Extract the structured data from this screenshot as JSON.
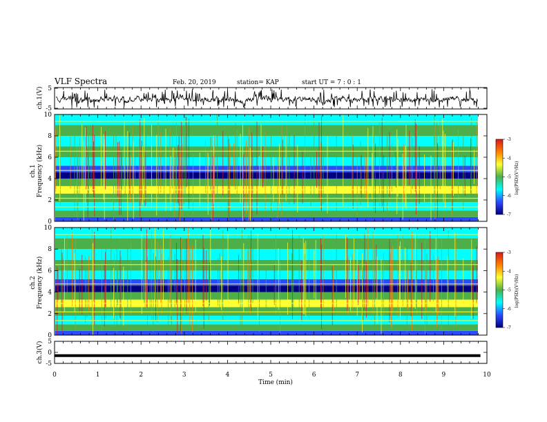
{
  "header": {
    "title": "VLF Spectra",
    "date": "Feb. 20, 2019",
    "station": "station= KAP",
    "start": "start  UT =  7 : 0  : 1"
  },
  "panels": {
    "ch1_trace_label": "ch.1(V)",
    "ch1_spec_label_1": "ch.1",
    "ch1_spec_label_2": "Frequency (kHz)",
    "ch2_spec_label_1": "ch.2",
    "ch2_spec_label_2": "Frequency (kHz)",
    "ch3_trace_label": "ch.3(V)",
    "xlabel": "Time (min)"
  },
  "colorbar": {
    "label": "log(PSD)(V²/Hz)",
    "ticks": [
      "-3",
      "-4",
      "-5",
      "-6",
      "-7"
    ],
    "colors": [
      "#d7191c",
      "#ff7f00",
      "#ffff33",
      "#4daf4a",
      "#00ffff",
      "#2b4bff",
      "#000080"
    ]
  },
  "chart_data": [
    {
      "type": "line",
      "name": "ch.1(V) waveform",
      "ylim": [
        -5,
        5
      ],
      "xlim": [
        0,
        10
      ],
      "yticks": [
        "5",
        "-5"
      ],
      "x_unit": "min"
    },
    {
      "type": "heatmap",
      "name": "ch.1 spectrogram",
      "xlim": [
        0,
        10
      ],
      "ylim": [
        0,
        10
      ],
      "yticks": [
        "10",
        "8",
        "6",
        "4",
        "2",
        "0"
      ],
      "clim": [
        -7,
        -3
      ]
    },
    {
      "type": "heatmap",
      "name": "ch.2 spectrogram",
      "xlim": [
        0,
        10
      ],
      "ylim": [
        0,
        10
      ],
      "yticks": [
        "10",
        "8",
        "6",
        "4",
        "2",
        "0"
      ],
      "clim": [
        -7,
        -3
      ]
    },
    {
      "type": "line",
      "name": "ch.3(V) waveform",
      "ylim": [
        -5,
        5
      ],
      "xlim": [
        0,
        10
      ],
      "yticks": [
        "5",
        "0",
        "-5"
      ],
      "values_constant": -1.5,
      "x_end": 9.85
    }
  ],
  "xaxis": {
    "ticks": [
      "0",
      "1",
      "2",
      "3",
      "4",
      "5",
      "6",
      "7",
      "8",
      "9",
      "10"
    ]
  }
}
